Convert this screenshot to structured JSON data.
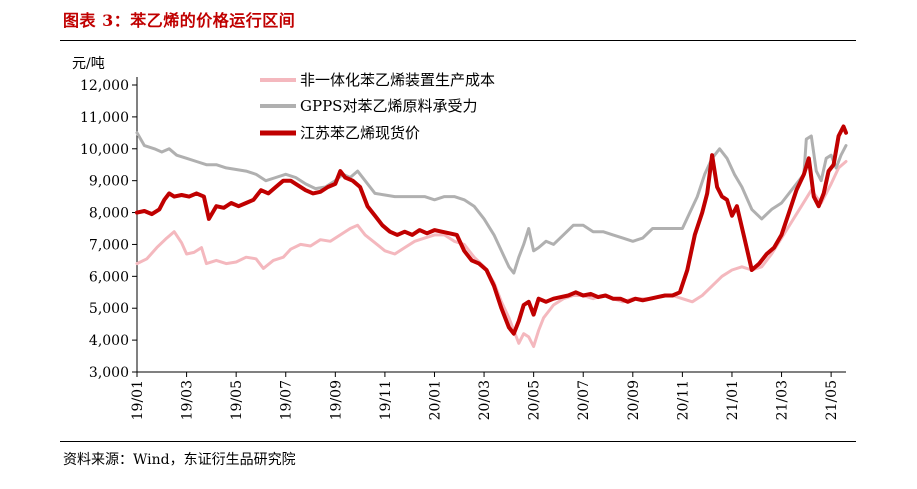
{
  "figure": {
    "title": "图表 3：苯乙烯的价格运行区间",
    "source": "资料来源：Wind，东证衍生品研究院"
  },
  "chart_data": {
    "type": "line",
    "unit_label": "元/吨",
    "ylim": [
      3000,
      12000
    ],
    "yticks": [
      "3,000",
      "4,000",
      "5,000",
      "6,000",
      "7,000",
      "8,000",
      "9,000",
      "10,000",
      "11,000",
      "12,000"
    ],
    "xticks": [
      "19/01",
      "19/03",
      "19/05",
      "19/07",
      "19/09",
      "19/11",
      "20/01",
      "20/03",
      "20/05",
      "20/07",
      "20/09",
      "20/11",
      "21/01",
      "21/03",
      "21/05"
    ],
    "xrange_months": [
      0,
      28.6
    ],
    "legend_position": "top-center",
    "series": [
      {
        "name": "非一体化苯乙烯装置生产成本",
        "color": "#f4b8be",
        "width": 3,
        "points": [
          [
            0,
            6400
          ],
          [
            0.4,
            6550
          ],
          [
            0.8,
            6900
          ],
          [
            1.2,
            7200
          ],
          [
            1.5,
            7400
          ],
          [
            1.8,
            7050
          ],
          [
            2.0,
            6700
          ],
          [
            2.3,
            6750
          ],
          [
            2.6,
            6900
          ],
          [
            2.8,
            6400
          ],
          [
            3.2,
            6500
          ],
          [
            3.6,
            6400
          ],
          [
            4.0,
            6450
          ],
          [
            4.4,
            6600
          ],
          [
            4.8,
            6550
          ],
          [
            5.1,
            6250
          ],
          [
            5.5,
            6500
          ],
          [
            5.9,
            6600
          ],
          [
            6.2,
            6850
          ],
          [
            6.6,
            7000
          ],
          [
            7.0,
            6950
          ],
          [
            7.4,
            7150
          ],
          [
            7.8,
            7100
          ],
          [
            8.2,
            7300
          ],
          [
            8.6,
            7500
          ],
          [
            8.9,
            7600
          ],
          [
            9.2,
            7300
          ],
          [
            9.6,
            7050
          ],
          [
            10.0,
            6800
          ],
          [
            10.4,
            6700
          ],
          [
            10.8,
            6900
          ],
          [
            11.2,
            7100
          ],
          [
            11.6,
            7200
          ],
          [
            12.0,
            7300
          ],
          [
            12.4,
            7300
          ],
          [
            12.8,
            7100
          ],
          [
            13.2,
            7000
          ],
          [
            13.6,
            6600
          ],
          [
            14.0,
            6300
          ],
          [
            14.4,
            5800
          ],
          [
            14.7,
            5200
          ],
          [
            15.0,
            4700
          ],
          [
            15.2,
            4300
          ],
          [
            15.4,
            3900
          ],
          [
            15.6,
            4200
          ],
          [
            15.8,
            4100
          ],
          [
            16.0,
            3800
          ],
          [
            16.2,
            4300
          ],
          [
            16.4,
            4700
          ],
          [
            16.8,
            5100
          ],
          [
            17.2,
            5300
          ],
          [
            17.6,
            5400
          ],
          [
            18.0,
            5400
          ],
          [
            18.4,
            5300
          ],
          [
            18.8,
            5400
          ],
          [
            19.2,
            5300
          ],
          [
            19.6,
            5200
          ],
          [
            20.0,
            5300
          ],
          [
            20.4,
            5300
          ],
          [
            20.8,
            5300
          ],
          [
            21.2,
            5400
          ],
          [
            21.6,
            5400
          ],
          [
            22.0,
            5300
          ],
          [
            22.4,
            5200
          ],
          [
            22.8,
            5400
          ],
          [
            23.2,
            5700
          ],
          [
            23.6,
            6000
          ],
          [
            24.0,
            6200
          ],
          [
            24.4,
            6300
          ],
          [
            24.8,
            6200
          ],
          [
            25.2,
            6300
          ],
          [
            25.6,
            6700
          ],
          [
            26.0,
            7200
          ],
          [
            26.4,
            7700
          ],
          [
            26.8,
            8200
          ],
          [
            27.2,
            8700
          ],
          [
            27.6,
            8300
          ],
          [
            28.0,
            8900
          ],
          [
            28.3,
            9400
          ],
          [
            28.6,
            9600
          ]
        ]
      },
      {
        "name": "GPPS对苯乙烯原料承受力",
        "color": "#b0b0b0",
        "width": 3,
        "points": [
          [
            0,
            10500
          ],
          [
            0.3,
            10100
          ],
          [
            0.7,
            10000
          ],
          [
            1.0,
            9900
          ],
          [
            1.3,
            10000
          ],
          [
            1.6,
            9800
          ],
          [
            2.0,
            9700
          ],
          [
            2.4,
            9600
          ],
          [
            2.8,
            9500
          ],
          [
            3.2,
            9500
          ],
          [
            3.6,
            9400
          ],
          [
            4.0,
            9350
          ],
          [
            4.4,
            9300
          ],
          [
            4.8,
            9200
          ],
          [
            5.2,
            9000
          ],
          [
            5.6,
            9100
          ],
          [
            6.0,
            9200
          ],
          [
            6.4,
            9100
          ],
          [
            6.8,
            8900
          ],
          [
            7.2,
            8750
          ],
          [
            7.6,
            8800
          ],
          [
            8.0,
            9000
          ],
          [
            8.3,
            9200
          ],
          [
            8.6,
            9100
          ],
          [
            8.9,
            9300
          ],
          [
            9.2,
            9000
          ],
          [
            9.6,
            8600
          ],
          [
            10.0,
            8550
          ],
          [
            10.4,
            8500
          ],
          [
            10.8,
            8500
          ],
          [
            11.2,
            8500
          ],
          [
            11.6,
            8500
          ],
          [
            12.0,
            8400
          ],
          [
            12.4,
            8500
          ],
          [
            12.8,
            8500
          ],
          [
            13.2,
            8400
          ],
          [
            13.6,
            8200
          ],
          [
            14.0,
            7800
          ],
          [
            14.4,
            7300
          ],
          [
            14.7,
            6800
          ],
          [
            15.0,
            6300
          ],
          [
            15.2,
            6100
          ],
          [
            15.4,
            6600
          ],
          [
            15.6,
            7000
          ],
          [
            15.8,
            7500
          ],
          [
            16.0,
            6800
          ],
          [
            16.2,
            6900
          ],
          [
            16.5,
            7100
          ],
          [
            16.8,
            7000
          ],
          [
            17.2,
            7300
          ],
          [
            17.6,
            7600
          ],
          [
            18.0,
            7600
          ],
          [
            18.4,
            7400
          ],
          [
            18.8,
            7400
          ],
          [
            19.2,
            7300
          ],
          [
            19.6,
            7200
          ],
          [
            20.0,
            7100
          ],
          [
            20.4,
            7200
          ],
          [
            20.8,
            7500
          ],
          [
            21.2,
            7500
          ],
          [
            21.6,
            7500
          ],
          [
            22.0,
            7500
          ],
          [
            22.3,
            8000
          ],
          [
            22.6,
            8500
          ],
          [
            22.9,
            9200
          ],
          [
            23.2,
            9700
          ],
          [
            23.5,
            10000
          ],
          [
            23.8,
            9700
          ],
          [
            24.1,
            9200
          ],
          [
            24.4,
            8800
          ],
          [
            24.8,
            8100
          ],
          [
            25.2,
            7800
          ],
          [
            25.6,
            8100
          ],
          [
            26.0,
            8300
          ],
          [
            26.4,
            8700
          ],
          [
            26.7,
            9000
          ],
          [
            26.9,
            9200
          ],
          [
            27.0,
            10300
          ],
          [
            27.2,
            10400
          ],
          [
            27.4,
            9300
          ],
          [
            27.6,
            9000
          ],
          [
            27.8,
            9700
          ],
          [
            28.0,
            9800
          ],
          [
            28.2,
            9400
          ],
          [
            28.4,
            9800
          ],
          [
            28.6,
            10100
          ]
        ]
      },
      {
        "name": "江苏苯乙烯现货价",
        "color": "#c00000",
        "width": 4,
        "points": [
          [
            0,
            8000
          ],
          [
            0.3,
            8050
          ],
          [
            0.6,
            7950
          ],
          [
            0.9,
            8100
          ],
          [
            1.1,
            8400
          ],
          [
            1.3,
            8600
          ],
          [
            1.5,
            8500
          ],
          [
            1.8,
            8550
          ],
          [
            2.1,
            8500
          ],
          [
            2.4,
            8600
          ],
          [
            2.7,
            8500
          ],
          [
            2.9,
            7800
          ],
          [
            3.2,
            8200
          ],
          [
            3.5,
            8150
          ],
          [
            3.8,
            8300
          ],
          [
            4.1,
            8200
          ],
          [
            4.4,
            8300
          ],
          [
            4.7,
            8400
          ],
          [
            5.0,
            8700
          ],
          [
            5.3,
            8600
          ],
          [
            5.6,
            8800
          ],
          [
            5.9,
            9000
          ],
          [
            6.2,
            9000
          ],
          [
            6.5,
            8850
          ],
          [
            6.8,
            8700
          ],
          [
            7.1,
            8600
          ],
          [
            7.4,
            8650
          ],
          [
            7.7,
            8800
          ],
          [
            8.0,
            8900
          ],
          [
            8.2,
            9300
          ],
          [
            8.4,
            9100
          ],
          [
            8.7,
            9000
          ],
          [
            9.0,
            8800
          ],
          [
            9.3,
            8200
          ],
          [
            9.6,
            7900
          ],
          [
            9.9,
            7600
          ],
          [
            10.2,
            7400
          ],
          [
            10.5,
            7300
          ],
          [
            10.8,
            7400
          ],
          [
            11.1,
            7300
          ],
          [
            11.4,
            7450
          ],
          [
            11.7,
            7350
          ],
          [
            12.0,
            7450
          ],
          [
            12.3,
            7400
          ],
          [
            12.6,
            7350
          ],
          [
            12.9,
            7300
          ],
          [
            13.2,
            6800
          ],
          [
            13.5,
            6500
          ],
          [
            13.8,
            6400
          ],
          [
            14.1,
            6200
          ],
          [
            14.4,
            5700
          ],
          [
            14.7,
            5000
          ],
          [
            15.0,
            4400
          ],
          [
            15.2,
            4200
          ],
          [
            15.4,
            4600
          ],
          [
            15.6,
            5100
          ],
          [
            15.8,
            5200
          ],
          [
            16.0,
            4800
          ],
          [
            16.2,
            5300
          ],
          [
            16.5,
            5200
          ],
          [
            16.8,
            5300
          ],
          [
            17.1,
            5350
          ],
          [
            17.4,
            5400
          ],
          [
            17.7,
            5500
          ],
          [
            18.0,
            5400
          ],
          [
            18.3,
            5450
          ],
          [
            18.6,
            5350
          ],
          [
            18.9,
            5400
          ],
          [
            19.2,
            5300
          ],
          [
            19.5,
            5300
          ],
          [
            19.8,
            5200
          ],
          [
            20.1,
            5300
          ],
          [
            20.4,
            5250
          ],
          [
            20.7,
            5300
          ],
          [
            21.0,
            5350
          ],
          [
            21.3,
            5400
          ],
          [
            21.6,
            5400
          ],
          [
            21.9,
            5500
          ],
          [
            22.2,
            6200
          ],
          [
            22.5,
            7300
          ],
          [
            22.8,
            8000
          ],
          [
            23.0,
            8600
          ],
          [
            23.2,
            9800
          ],
          [
            23.4,
            8800
          ],
          [
            23.6,
            8500
          ],
          [
            23.8,
            8400
          ],
          [
            24.0,
            7900
          ],
          [
            24.2,
            8200
          ],
          [
            24.5,
            7200
          ],
          [
            24.8,
            6200
          ],
          [
            25.1,
            6400
          ],
          [
            25.4,
            6700
          ],
          [
            25.7,
            6900
          ],
          [
            26.0,
            7300
          ],
          [
            26.3,
            8000
          ],
          [
            26.6,
            8700
          ],
          [
            26.9,
            9200
          ],
          [
            27.1,
            9700
          ],
          [
            27.3,
            8500
          ],
          [
            27.5,
            8200
          ],
          [
            27.7,
            8600
          ],
          [
            27.9,
            9300
          ],
          [
            28.1,
            9500
          ],
          [
            28.3,
            10400
          ],
          [
            28.5,
            10700
          ],
          [
            28.6,
            10500
          ]
        ]
      }
    ]
  }
}
